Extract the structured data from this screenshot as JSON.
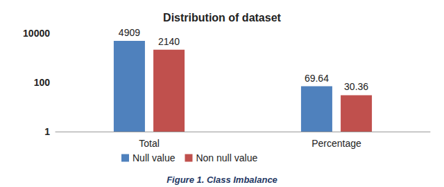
{
  "chart_data": {
    "type": "bar",
    "title": "Distribution of dataset",
    "caption": "Figure 1. Class Imbalance",
    "categories": [
      "Total",
      "Percentage"
    ],
    "series": [
      {
        "name": "Null value",
        "color": "#4f81bd",
        "values": [
          4909,
          69.64
        ]
      },
      {
        "name": "Non null value",
        "color": "#c0504d",
        "values": [
          2140,
          30.36
        ]
      }
    ],
    "log": "y",
    "ylim": [
      1,
      10000
    ],
    "yticks": [
      1,
      100,
      10000
    ],
    "grid": false,
    "legend": "bottom",
    "data_labels": true
  }
}
